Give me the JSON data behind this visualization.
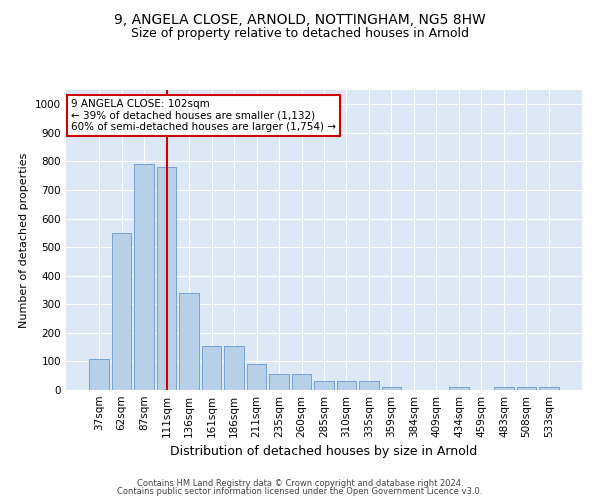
{
  "title1": "9, ANGELA CLOSE, ARNOLD, NOTTINGHAM, NG5 8HW",
  "title2": "Size of property relative to detached houses in Arnold",
  "xlabel": "Distribution of detached houses by size in Arnold",
  "ylabel": "Number of detached properties",
  "categories": [
    "37sqm",
    "62sqm",
    "87sqm",
    "111sqm",
    "136sqm",
    "161sqm",
    "186sqm",
    "211sqm",
    "235sqm",
    "260sqm",
    "285sqm",
    "310sqm",
    "335sqm",
    "359sqm",
    "384sqm",
    "409sqm",
    "434sqm",
    "459sqm",
    "483sqm",
    "508sqm",
    "533sqm"
  ],
  "values": [
    110,
    550,
    790,
    780,
    340,
    155,
    155,
    90,
    55,
    55,
    30,
    30,
    30,
    10,
    0,
    0,
    10,
    0,
    10,
    10,
    10
  ],
  "bar_color": "#b8cfe8",
  "bar_edge_color": "#6699cc",
  "vline_x_index": 3,
  "vline_color": "#cc0000",
  "annotation_text": "9 ANGELA CLOSE: 102sqm\n← 39% of detached houses are smaller (1,132)\n60% of semi-detached houses are larger (1,754) →",
  "annotation_box_color": "#ffffff",
  "annotation_box_edge": "#cc0000",
  "ylim": [
    0,
    1050
  ],
  "yticks": [
    0,
    100,
    200,
    300,
    400,
    500,
    600,
    700,
    800,
    900,
    1000
  ],
  "background_color": "#dce8f5",
  "footer1": "Contains HM Land Registry data © Crown copyright and database right 2024.",
  "footer2": "Contains public sector information licensed under the Open Government Licence v3.0.",
  "title1_fontsize": 10,
  "title2_fontsize": 9,
  "ylabel_fontsize": 8,
  "xlabel_fontsize": 9,
  "tick_fontsize": 7.5,
  "annot_fontsize": 7.5,
  "footer_fontsize": 6
}
